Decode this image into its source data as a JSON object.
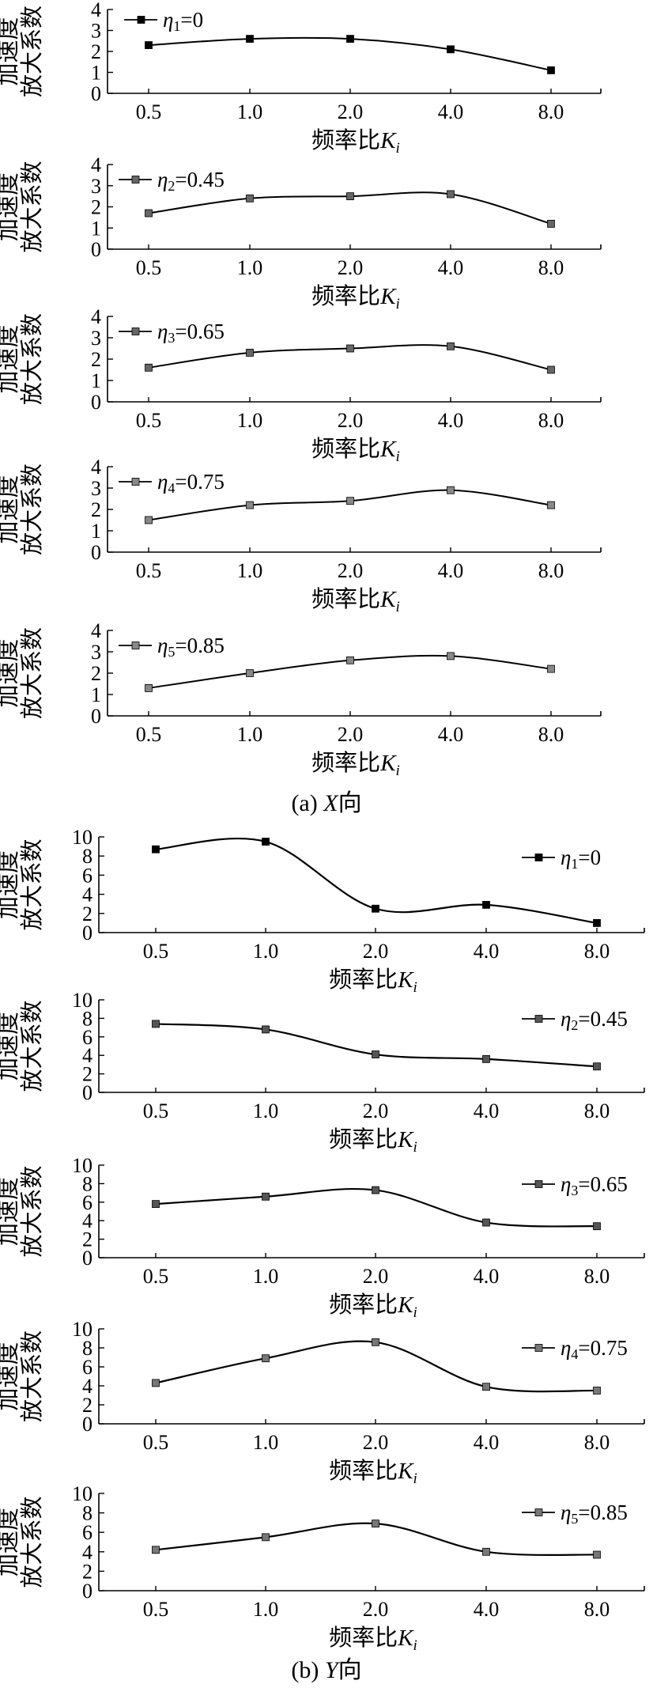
{
  "figure": {
    "caption_a_prefix": "(a) ",
    "caption_a_var": "X",
    "caption_a_suffix": "向",
    "caption_b_prefix": "(b) ",
    "caption_b_var": "Y",
    "caption_b_suffix": "向"
  },
  "chart_data": [
    {
      "type": "line",
      "group": "a",
      "xlabel_text": "频率比",
      "xlabel_var": "K",
      "xlabel_sub": "i",
      "ylabel_line1": "加速度",
      "ylabel_line2": "放大系数",
      "categories": [
        "0.5",
        "1.0",
        "2.0",
        "4.0",
        "8.0"
      ],
      "ylim": [
        0,
        4
      ],
      "yticks": [
        "0",
        "1",
        "2",
        "3",
        "4"
      ],
      "legend_placement": "top-left",
      "series": [
        {
          "name": "η1=0",
          "name_var": "η",
          "name_sub": "1",
          "name_val": "=0",
          "values": [
            2.3,
            2.6,
            2.6,
            2.1,
            1.1
          ],
          "color": "#000000"
        }
      ]
    },
    {
      "type": "line",
      "group": "a",
      "xlabel_text": "频率比",
      "xlabel_var": "K",
      "xlabel_sub": "i",
      "ylabel_line1": "加速度",
      "ylabel_line2": "放大系数",
      "categories": [
        "0.5",
        "1.0",
        "2.0",
        "4.0",
        "8.0"
      ],
      "ylim": [
        0,
        4
      ],
      "yticks": [
        "0",
        "1",
        "2",
        "3",
        "4"
      ],
      "legend_placement": "top-left",
      "series": [
        {
          "name": "η2=0.45",
          "name_var": "η",
          "name_sub": "2",
          "name_val": "=0.45",
          "values": [
            1.7,
            2.4,
            2.5,
            2.6,
            1.2
          ],
          "color": "#666666"
        }
      ]
    },
    {
      "type": "line",
      "group": "a",
      "xlabel_text": "频率比",
      "xlabel_var": "K",
      "xlabel_sub": "i",
      "ylabel_line1": "加速度",
      "ylabel_line2": "放大系数",
      "categories": [
        "0.5",
        "1.0",
        "2.0",
        "4.0",
        "8.0"
      ],
      "ylim": [
        0,
        4
      ],
      "yticks": [
        "0",
        "1",
        "2",
        "3",
        "4"
      ],
      "legend_placement": "top-left",
      "series": [
        {
          "name": "η3=0.65",
          "name_var": "η",
          "name_sub": "3",
          "name_val": "=0.65",
          "values": [
            1.6,
            2.3,
            2.5,
            2.6,
            1.5
          ],
          "color": "#666666"
        }
      ]
    },
    {
      "type": "line",
      "group": "a",
      "xlabel_text": "频率比",
      "xlabel_var": "K",
      "xlabel_sub": "i",
      "ylabel_line1": "加速度",
      "ylabel_line2": "放大系数",
      "categories": [
        "0.5",
        "1.0",
        "2.0",
        "4.0",
        "8.0"
      ],
      "ylim": [
        0,
        4
      ],
      "yticks": [
        "0",
        "1",
        "2",
        "3",
        "4"
      ],
      "legend_placement": "top-left",
      "series": [
        {
          "name": "η4=0.75",
          "name_var": "η",
          "name_sub": "4",
          "name_val": "=0.75",
          "values": [
            1.5,
            2.2,
            2.4,
            2.9,
            2.2
          ],
          "color": "#888888"
        }
      ]
    },
    {
      "type": "line",
      "group": "a",
      "xlabel_text": "频率比",
      "xlabel_var": "K",
      "xlabel_sub": "i",
      "ylabel_line1": "加速度",
      "ylabel_line2": "放大系数",
      "categories": [
        "0.5",
        "1.0",
        "2.0",
        "4.0",
        "8.0"
      ],
      "ylim": [
        0,
        4
      ],
      "yticks": [
        "0",
        "1",
        "2",
        "3",
        "4"
      ],
      "legend_placement": "top-left",
      "series": [
        {
          "name": "η5=0.85",
          "name_var": "η",
          "name_sub": "5",
          "name_val": "=0.85",
          "values": [
            1.3,
            2.0,
            2.6,
            2.8,
            2.2
          ],
          "color": "#888888"
        }
      ]
    },
    {
      "type": "line",
      "group": "b",
      "xlabel_text": "频率比",
      "xlabel_var": "K",
      "xlabel_sub": "i",
      "ylabel_line1": "加速度",
      "ylabel_line2": "放大系数",
      "categories": [
        "0.5",
        "1.0",
        "2.0",
        "4.0",
        "8.0"
      ],
      "ylim": [
        0,
        10
      ],
      "yticks": [
        "0",
        "2",
        "4",
        "6",
        "8",
        "10"
      ],
      "legend_placement": "top-right",
      "series": [
        {
          "name": "η1=0",
          "name_var": "η",
          "name_sub": "1",
          "name_val": "=0",
          "values": [
            8.7,
            9.5,
            2.5,
            2.9,
            1.0
          ],
          "color": "#000000"
        }
      ]
    },
    {
      "type": "line",
      "group": "b",
      "xlabel_text": "频率比",
      "xlabel_var": "K",
      "xlabel_sub": "i",
      "ylabel_line1": "加速度",
      "ylabel_line2": "放大系数",
      "categories": [
        "0.5",
        "1.0",
        "2.0",
        "4.0",
        "8.0"
      ],
      "ylim": [
        0,
        10
      ],
      "yticks": [
        "0",
        "2",
        "4",
        "6",
        "8",
        "10"
      ],
      "legend_placement": "top-right",
      "series": [
        {
          "name": "η2=0.45",
          "name_var": "η",
          "name_sub": "2",
          "name_val": "=0.45",
          "values": [
            7.4,
            6.8,
            4.1,
            3.6,
            2.8
          ],
          "color": "#555555"
        }
      ]
    },
    {
      "type": "line",
      "group": "b",
      "xlabel_text": "频率比",
      "xlabel_var": "K",
      "xlabel_sub": "i",
      "ylabel_line1": "加速度",
      "ylabel_line2": "放大系数",
      "categories": [
        "0.5",
        "1.0",
        "2.0",
        "4.0",
        "8.0"
      ],
      "ylim": [
        0,
        10
      ],
      "yticks": [
        "0",
        "2",
        "4",
        "6",
        "8",
        "10"
      ],
      "legend_placement": "top-right",
      "series": [
        {
          "name": "η3=0.65",
          "name_var": "η",
          "name_sub": "3",
          "name_val": "=0.65",
          "values": [
            5.8,
            6.6,
            7.3,
            3.8,
            3.4
          ],
          "color": "#555555"
        }
      ]
    },
    {
      "type": "line",
      "group": "b",
      "xlabel_text": "频率比",
      "xlabel_var": "K",
      "xlabel_sub": "i",
      "ylabel_line1": "加速度",
      "ylabel_line2": "放大系数",
      "categories": [
        "0.5",
        "1.0",
        "2.0",
        "4.0",
        "8.0"
      ],
      "ylim": [
        0,
        10
      ],
      "yticks": [
        "0",
        "2",
        "4",
        "6",
        "8",
        "10"
      ],
      "legend_placement": "top-right",
      "series": [
        {
          "name": "η4=0.75",
          "name_var": "η",
          "name_sub": "4",
          "name_val": "=0.75",
          "values": [
            4.3,
            6.9,
            8.6,
            3.9,
            3.5
          ],
          "color": "#777777"
        }
      ]
    },
    {
      "type": "line",
      "group": "b",
      "xlabel_text": "频率比",
      "xlabel_var": "K",
      "xlabel_sub": "i",
      "ylabel_line1": "加速度",
      "ylabel_line2": "放大系数",
      "categories": [
        "0.5",
        "1.0",
        "2.0",
        "4.0",
        "8.0"
      ],
      "ylim": [
        0,
        10
      ],
      "yticks": [
        "0",
        "2",
        "4",
        "6",
        "8",
        "10"
      ],
      "legend_placement": "top-right",
      "series": [
        {
          "name": "η5=0.85",
          "name_var": "η",
          "name_sub": "5",
          "name_val": "=0.85",
          "values": [
            4.2,
            5.5,
            6.9,
            4.0,
            3.7
          ],
          "color": "#777777"
        }
      ]
    }
  ]
}
